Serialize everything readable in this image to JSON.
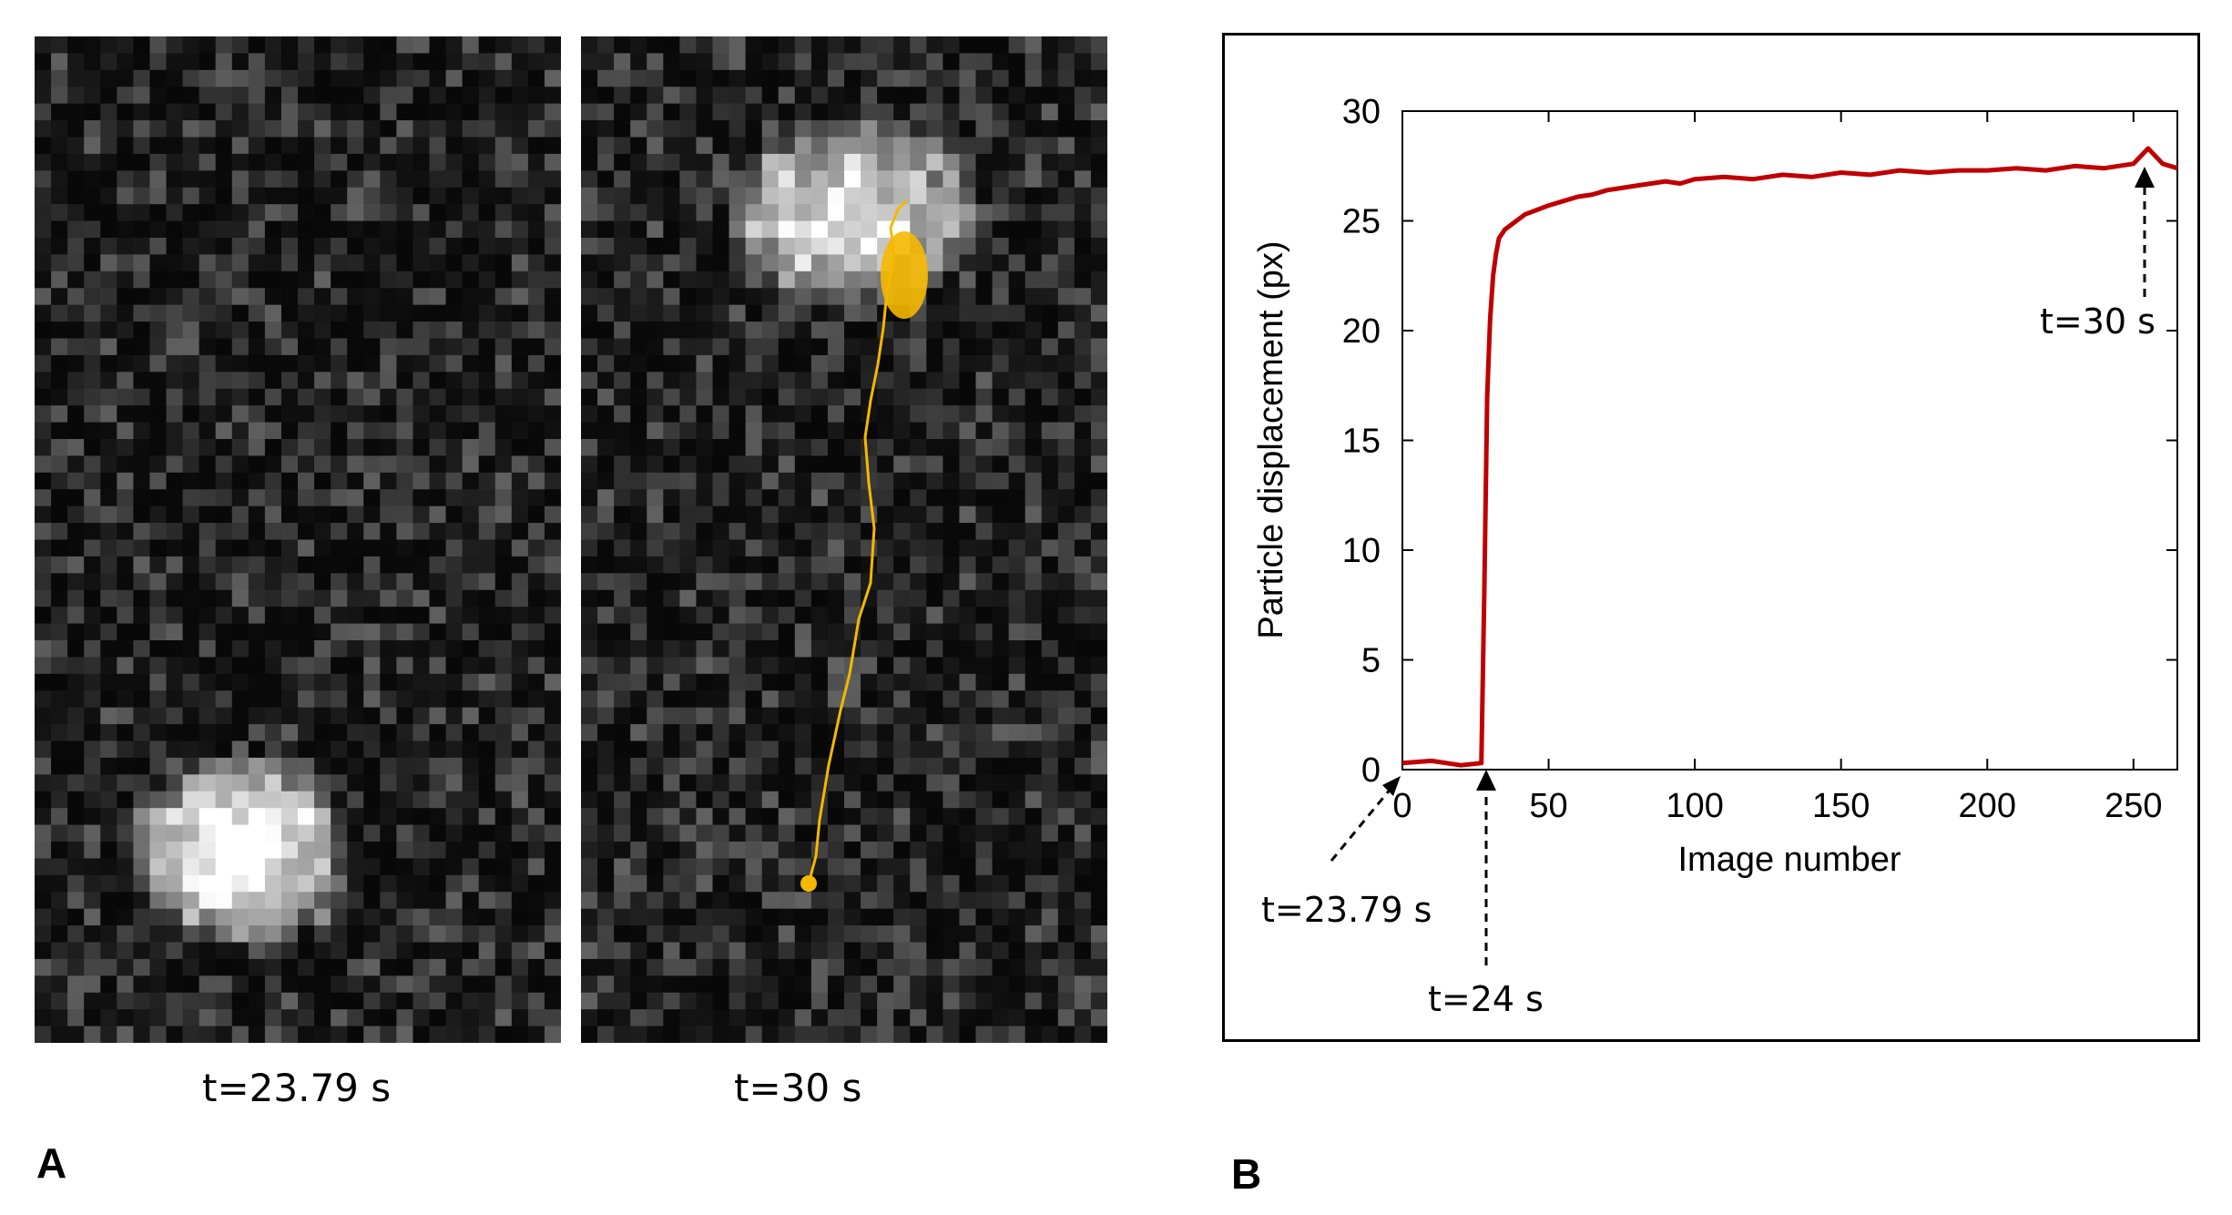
{
  "panels": {
    "a": {
      "letter": "A",
      "left_caption": "t=23.79 s",
      "right_caption": "t=30 s",
      "track_color": "#f5b800"
    },
    "b": {
      "letter": "B"
    }
  },
  "chart_data": {
    "type": "line",
    "title": "",
    "xlabel": "Image number",
    "ylabel": "Particle displacement (px)",
    "xlim": [
      0,
      265
    ],
    "ylim": [
      0,
      30
    ],
    "xticks": [
      0,
      50,
      100,
      150,
      200,
      250
    ],
    "yticks": [
      0,
      5,
      10,
      15,
      20,
      25,
      30
    ],
    "grid": false,
    "legend": "none",
    "series": [
      {
        "name": "displacement",
        "color": "#c00000",
        "x": [
          0,
          10,
          20,
          27,
          28,
          29,
          30,
          31,
          32,
          33,
          35,
          38,
          42,
          46,
          50,
          55,
          60,
          65,
          70,
          75,
          80,
          85,
          90,
          95,
          100,
          110,
          120,
          130,
          140,
          150,
          160,
          170,
          180,
          190,
          200,
          210,
          220,
          230,
          240,
          250,
          255,
          260,
          265
        ],
        "y": [
          0.3,
          0.4,
          0.2,
          0.3,
          8,
          17,
          20.5,
          22.5,
          23.5,
          24.2,
          24.6,
          24.9,
          25.3,
          25.5,
          25.7,
          25.9,
          26.1,
          26.2,
          26.4,
          26.5,
          26.6,
          26.7,
          26.8,
          26.7,
          26.9,
          27.0,
          26.9,
          27.1,
          27.0,
          27.2,
          27.1,
          27.3,
          27.2,
          27.3,
          27.3,
          27.4,
          27.3,
          27.5,
          27.4,
          27.6,
          28.3,
          27.6,
          27.4
        ]
      }
    ],
    "annotations": [
      {
        "text": "t=23.79 s",
        "x": 0,
        "y": 0
      },
      {
        "text": "t=24 s",
        "x": 28,
        "y": 0
      },
      {
        "text": "t=30 s",
        "x": 255,
        "y": 27.5
      }
    ]
  }
}
